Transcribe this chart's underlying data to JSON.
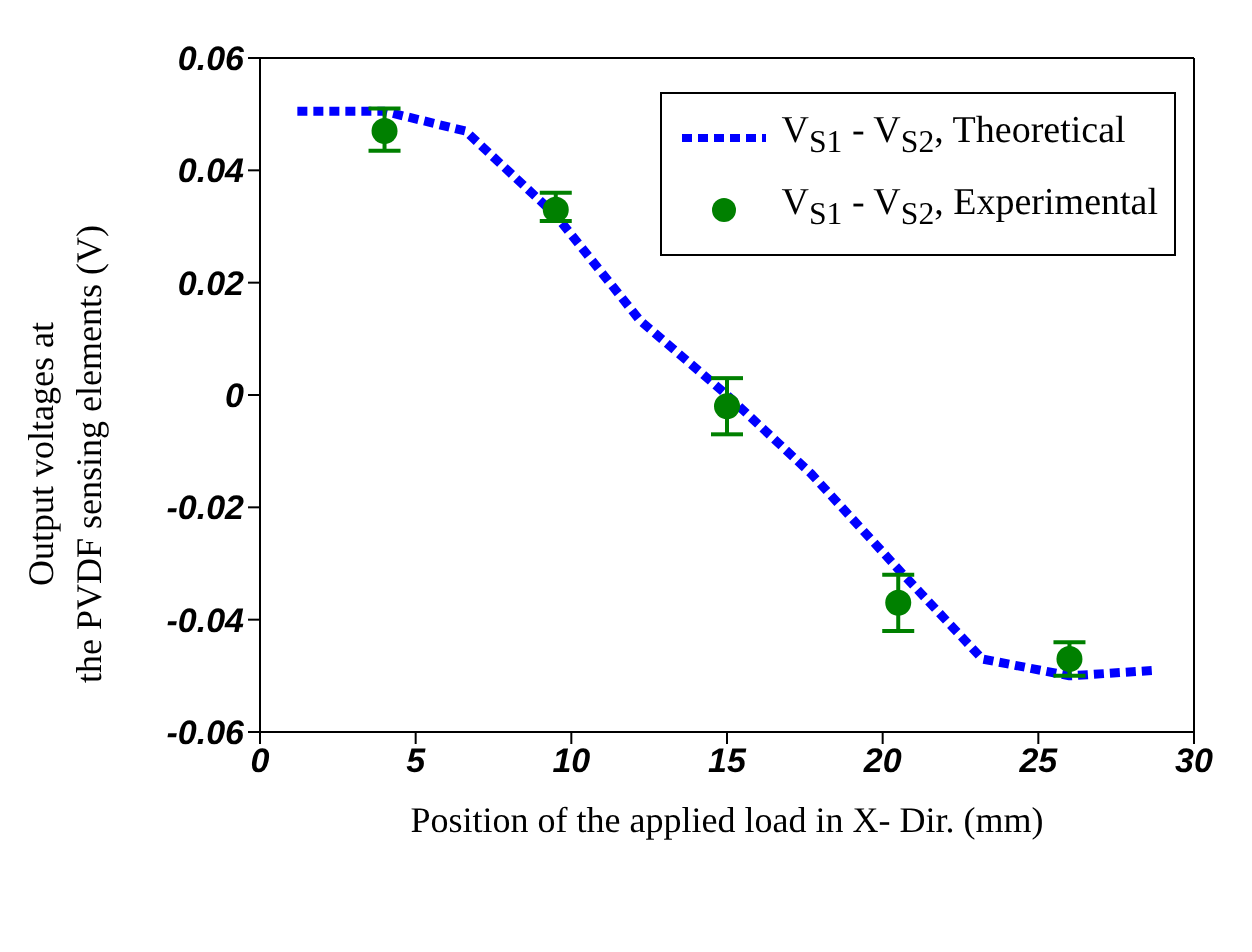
{
  "chart_data": {
    "type": "line",
    "xlabel": "Position of the applied load in X- Dir. (mm)",
    "ylabel": "Output voltages at\nthe PVDF sensing elements (V)",
    "xlim": [
      0,
      30
    ],
    "xticks": [
      0,
      5,
      10,
      15,
      20,
      25,
      30
    ],
    "ylim": [
      -0.06,
      0.06
    ],
    "yticks": [
      -0.06,
      -0.04,
      -0.02,
      0,
      0.02,
      0.04,
      0.06
    ],
    "grid": false,
    "legend": "top right",
    "series": [
      {
        "name": "V$_{S1}$ - V$_{S2}$, Theoretical",
        "color": "#0000ff",
        "line_style": "dashed",
        "marker": "none",
        "x": [
          1.2,
          4,
          6.6,
          9.5,
          12.2,
          15,
          17.7,
          20.5,
          23.2,
          26,
          28.8
        ],
        "values": [
          0.0505,
          0.0505,
          0.047,
          0.032,
          0.0133,
          0,
          -0.014,
          -0.031,
          -0.047,
          -0.05,
          -0.049
        ]
      },
      {
        "name": "V$_{S1}$ - V$_{S2}$, Experimental",
        "type": "scatter",
        "color": "#008000",
        "marker": "circle",
        "x": [
          4,
          9.5,
          15,
          20.5,
          26
        ],
        "values": [
          0.047,
          0.033,
          -0.002,
          -0.037,
          -0.047
        ],
        "errors": [
          [
            0.0435,
            0.051
          ],
          [
            0.031,
            0.036
          ],
          [
            -0.007,
            0.003
          ],
          [
            -0.042,
            -0.032
          ],
          [
            -0.05,
            -0.044
          ]
        ]
      }
    ]
  }
}
